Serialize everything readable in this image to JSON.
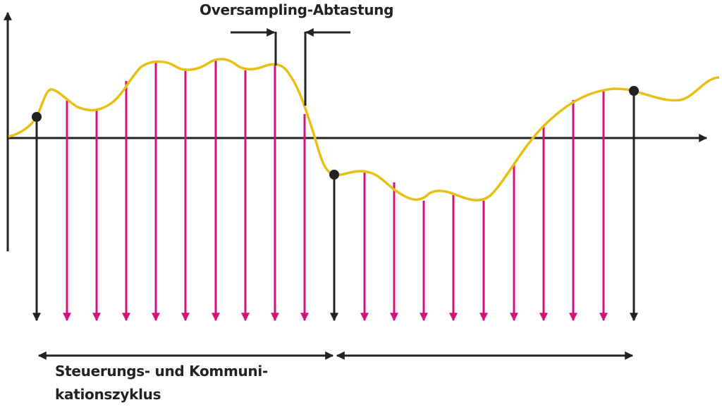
{
  "title": "Oversampling-Abtastung",
  "caption": {
    "line1": "Steuerungs- und Kommuni-",
    "line2": "kationszyklus"
  },
  "colors": {
    "signal": "#e8c014",
    "oversample": "#d4127f",
    "cycle_sample": "#222222"
  },
  "samples": {
    "cycle_samples_count": 3,
    "oversamples_per_cycle": 9
  }
}
